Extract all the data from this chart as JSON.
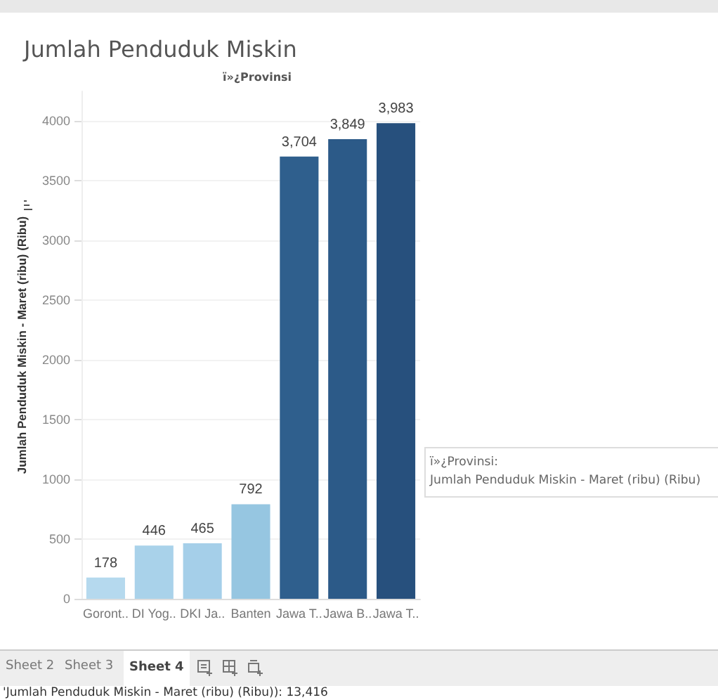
{
  "chart_data": {
    "type": "bar",
    "title": "Jumlah Penduduk Miskin",
    "subtitle": "ï»¿Provinsi",
    "ylabel": "Jumlah Penduduk Miskin - Maret (ribu) (Ribu)",
    "categories": [
      "Goront..",
      "DI Yog..",
      "DKI Ja..",
      "Banten",
      "Jawa T..",
      "Jawa B..",
      "Jawa T.."
    ],
    "values": [
      178,
      446,
      465,
      792,
      3704,
      3849,
      3983
    ],
    "colors": [
      "#b5d9ee",
      "#a9d2ea",
      "#a5cfe9",
      "#96c6e1",
      "#2f5f8d",
      "#2c5a88",
      "#27507d"
    ],
    "value_labels": [
      "178",
      "446",
      "465",
      "792",
      "3,704",
      "3,849",
      "3,983"
    ],
    "ylim": [
      0,
      4250
    ],
    "yticks": [
      0,
      500,
      1000,
      1500,
      2000,
      2500,
      3000,
      3500,
      4000
    ],
    "grid": "y",
    "annotations": [
      "ï»¿Provinsi:",
      "Jumlah Penduduk Miskin - Maret (ribu) (Ribu)",
      "Sheet 2",
      "Sheet 3",
      "Sheet 4",
      "'Jumlah Penduduk Miskin - Maret (ribu) (Ribu)): 13,416"
    ]
  }
}
